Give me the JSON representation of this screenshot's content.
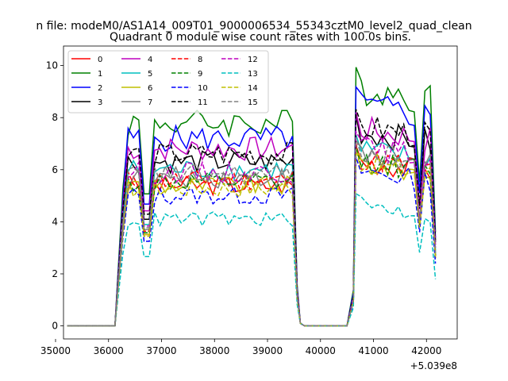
{
  "chart_data": {
    "type": "line",
    "suptitle": "n file: modeM0/AS1A14_009T01_9000006534_55343cztM0_level2_quad_clean",
    "title": "Quadrant 0 module wise count rates with 100.0s bins.",
    "xlabel": "",
    "ylabel": "",
    "x_offset_label": "+5.039e8",
    "xlim": [
      35150,
      42580
    ],
    "ylim": [
      -0.5,
      10.75
    ],
    "xticks": [
      35000,
      36000,
      37000,
      38000,
      39000,
      40000,
      41000,
      42000
    ],
    "xtick_labels": [
      "35000",
      "36000",
      "37000",
      "38000",
      "39000",
      "40000",
      "41000",
      "42000"
    ],
    "yticks": [
      0,
      2,
      4,
      6,
      8,
      10
    ],
    "ytick_labels": [
      "0",
      "2",
      "4",
      "6",
      "8",
      "10"
    ],
    "legend_loc": "upper left",
    "segments": [
      {
        "x_start": 35220,
        "x_end": 36120,
        "profile": "zero"
      },
      {
        "x_start": 36120,
        "x_end": 39520,
        "profile": "burst1"
      },
      {
        "x_start": 39520,
        "x_end": 40570,
        "profile": "drop"
      },
      {
        "x_start": 40570,
        "x_end": 42220,
        "profile": "burst2"
      }
    ],
    "series": [
      {
        "name": "0",
        "color": "#ff0000",
        "dash": "solid",
        "level1": 5.4,
        "level2": 6.4,
        "end": 2.6
      },
      {
        "name": "1",
        "color": "#008000",
        "dash": "solid",
        "level1": 7.8,
        "level2": 9.2,
        "end": 3.6
      },
      {
        "name": "2",
        "color": "#0000ff",
        "dash": "solid",
        "level1": 7.2,
        "level2": 8.5,
        "end": 3.4
      },
      {
        "name": "3",
        "color": "#000000",
        "dash": "solid",
        "level1": 6.3,
        "level2": 7.5,
        "end": 3.3
      },
      {
        "name": "4",
        "color": "#bf00bf",
        "dash": "solid",
        "level1": 6.8,
        "level2": 7.6,
        "end": 3.1
      },
      {
        "name": "5",
        "color": "#00bfbf",
        "dash": "solid",
        "level1": 6.0,
        "level2": 6.8,
        "end": 2.9
      },
      {
        "name": "6",
        "color": "#bfbf00",
        "dash": "solid",
        "level1": 5.4,
        "level2": 6.3,
        "end": 2.6
      },
      {
        "name": "7",
        "color": "#808080",
        "dash": "solid",
        "level1": 5.7,
        "level2": 6.6,
        "end": 2.8
      },
      {
        "name": "8",
        "color": "#ff0000",
        "dash": "dashed",
        "level1": 5.6,
        "level2": 6.5,
        "end": 2.7
      },
      {
        "name": "9",
        "color": "#008000",
        "dash": "dashed",
        "level1": 5.5,
        "level2": 6.4,
        "end": 2.7
      },
      {
        "name": "10",
        "color": "#0000ff",
        "dash": "dashed",
        "level1": 5.0,
        "level2": 6.0,
        "end": 2.4
      },
      {
        "name": "11",
        "color": "#000000",
        "dash": "dashed",
        "level1": 6.6,
        "level2": 7.7,
        "end": 3.2
      },
      {
        "name": "12",
        "color": "#bf00bf",
        "dash": "dashed",
        "level1": 5.9,
        "level2": 6.9,
        "end": 3.0
      },
      {
        "name": "13",
        "color": "#00bfbf",
        "dash": "dashed",
        "level1": 4.1,
        "level2": 4.7,
        "end": 1.8
      },
      {
        "name": "14",
        "color": "#bfbf00",
        "dash": "dashed",
        "level1": 5.3,
        "level2": 6.3,
        "end": 2.6
      },
      {
        "name": "15",
        "color": "#808080",
        "dash": "dashed",
        "level1": 5.8,
        "level2": 6.7,
        "end": 2.8
      }
    ]
  }
}
